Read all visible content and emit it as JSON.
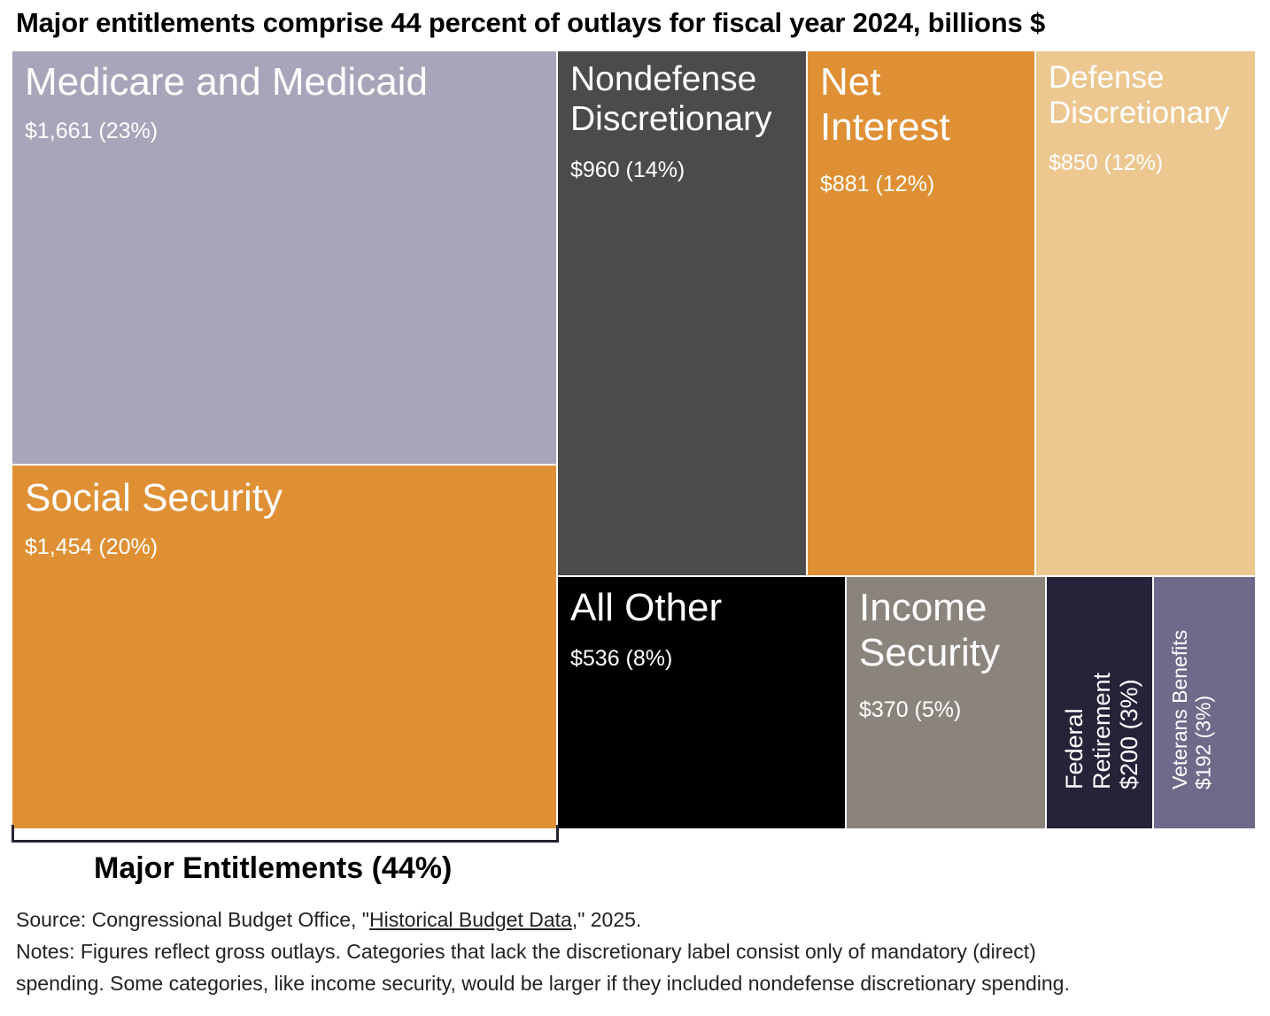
{
  "chart_data": {
    "type": "treemap",
    "title": "Major entitlements comprise 44 percent of outlays for fiscal year 2024, billions $",
    "units": "billions $",
    "items": [
      {
        "name": "Medicare and Medicaid",
        "value": 1661,
        "label": "$1,661 (23%)",
        "percent": 23,
        "color": "#a8a4b9"
      },
      {
        "name": "Social Security",
        "value": 1454,
        "label": "$1,454 (20%)",
        "percent": 20,
        "color": "#df9034"
      },
      {
        "name": "Nondefense Discretionary",
        "value": 960,
        "label": "$960 (14%)",
        "percent": 14,
        "color": "#4b4b4b"
      },
      {
        "name": "Net Interest",
        "value": 881,
        "label": "$881 (12%)",
        "percent": 12,
        "color": "#df9034"
      },
      {
        "name": "Defense Discretionary",
        "value": 850,
        "label": "$850 (12%)",
        "percent": 12,
        "color": "#ecc790"
      },
      {
        "name": "All Other",
        "value": 536,
        "label": "$536 (8%)",
        "percent": 8,
        "color": "#000000"
      },
      {
        "name": "Income Security",
        "value": 370,
        "label": "$370 (5%)",
        "percent": 5,
        "color": "#8b847d"
      },
      {
        "name": "Federal Retirement",
        "value": 200,
        "label": "$200 (3%)",
        "percent": 3,
        "color": "#262238"
      },
      {
        "name": "Veterans Benefits",
        "value": 192,
        "label": "$192 (3%)",
        "percent": 3,
        "color": "#6e6a8a"
      }
    ],
    "group_annotation": "Major Entitlements (44%)"
  },
  "source": {
    "prefix": "Source: Congressional Budget Office, \"",
    "link_text": "Historical Budget Data",
    "suffix": ",\" 2025."
  },
  "notes": {
    "line1": "Notes: Figures reflect gross outlays. Categories that lack the discretionary label consist only of mandatory (direct)",
    "line2": "spending. Some categories, like income security, would be larger if they included nondefense discretionary spending."
  }
}
